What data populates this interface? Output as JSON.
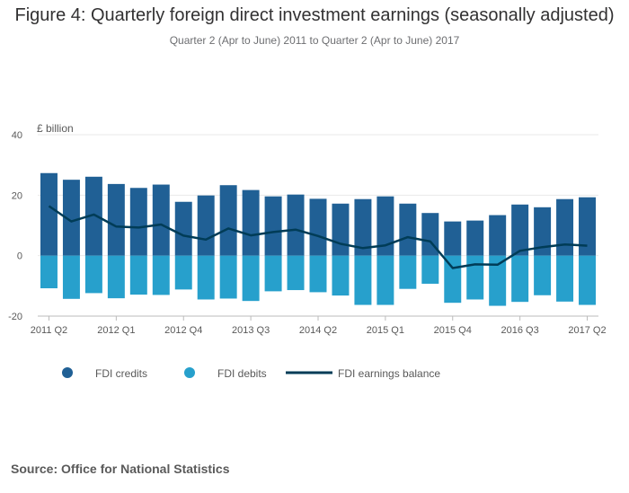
{
  "title": "Figure 4: Quarterly foreign direct investment earnings (seasonally adjusted)",
  "subtitle": "Quarter 2 (Apr to June) 2011 to Quarter 2 (Apr to June) 2017",
  "source": "Source: Office for National Statistics",
  "colors": {
    "credits": "#206095",
    "debits": "#27a0cc",
    "balance": "#003c57",
    "grid": "#e8e8e8",
    "axis": "#bbbbbb",
    "text": "#595959"
  },
  "chart_data": {
    "type": "bar",
    "yunit_label": "£ billion",
    "ylim": [
      -20,
      40
    ],
    "yticks": [
      -20,
      0,
      20,
      40
    ],
    "grid": true,
    "legend_position": "bottom",
    "categories": [
      "2011 Q2",
      "2011 Q3",
      "2011 Q4",
      "2012 Q1",
      "2012 Q2",
      "2012 Q3",
      "2012 Q4",
      "2013 Q1",
      "2013 Q2",
      "2013 Q3",
      "2013 Q4",
      "2014 Q1",
      "2014 Q2",
      "2014 Q3",
      "2014 Q4",
      "2015 Q1",
      "2015 Q2",
      "2015 Q3",
      "2015 Q4",
      "2016 Q1",
      "2016 Q2",
      "2016 Q3",
      "2016 Q4",
      "2017 Q1",
      "2017 Q2"
    ],
    "xtick_labels": [
      "2011 Q2",
      "2012 Q1",
      "2012 Q4",
      "2013 Q3",
      "2014 Q2",
      "2015 Q1",
      "2015 Q4",
      "2016 Q3",
      "2017 Q2"
    ],
    "series": [
      {
        "name": "FDI credits",
        "kind": "bar",
        "values": [
          27.3,
          25.1,
          26.1,
          23.7,
          22.4,
          23.5,
          17.8,
          19.9,
          23.3,
          21.7,
          19.6,
          20.2,
          18.8,
          17.2,
          18.7,
          19.6,
          17.2,
          14.1,
          11.3,
          11.6,
          13.4,
          16.9,
          16.0,
          18.7,
          19.3
        ]
      },
      {
        "name": "FDI debits",
        "kind": "bar",
        "values": [
          -10.8,
          -14.3,
          -12.4,
          -14.1,
          -12.9,
          -13.0,
          -11.2,
          -14.5,
          -14.2,
          -15.0,
          -11.8,
          -11.4,
          -12.1,
          -13.2,
          -16.3,
          -16.3,
          -11.0,
          -9.3,
          -15.6,
          -14.5,
          -16.6,
          -15.3,
          -13.1,
          -15.2,
          -16.3
        ]
      },
      {
        "name": "FDI earnings balance",
        "kind": "line",
        "values": [
          16.4,
          11.3,
          13.6,
          9.6,
          9.3,
          10.3,
          6.6,
          5.3,
          9.0,
          6.7,
          7.8,
          8.6,
          6.5,
          3.9,
          2.5,
          3.4,
          6.1,
          4.7,
          -4.1,
          -2.9,
          -3.0,
          1.6,
          2.8,
          3.7,
          3.3
        ]
      }
    ]
  }
}
